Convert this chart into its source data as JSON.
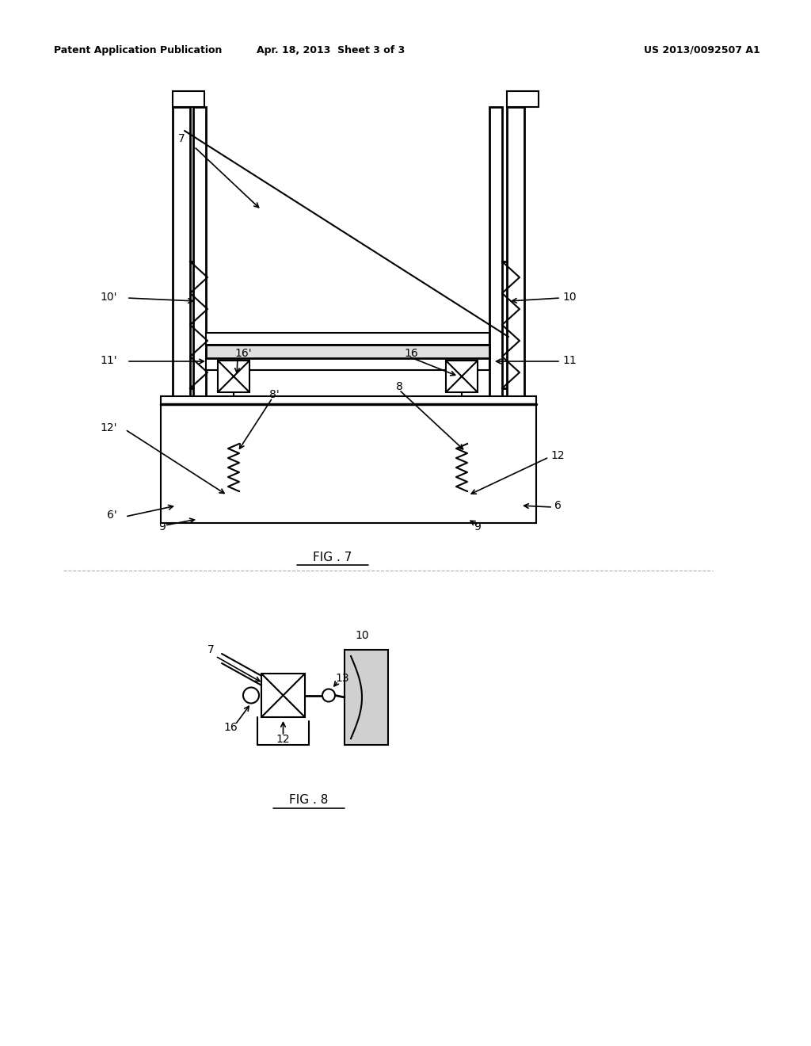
{
  "bg_color": "#ffffff",
  "line_color": "#000000",
  "header_left": "Patent Application Publication",
  "header_center": "Apr. 18, 2013  Sheet 3 of 3",
  "header_right": "US 2013/0092507 A1",
  "fig7_label": "FIG . 7",
  "fig8_label": "FIG . 8"
}
